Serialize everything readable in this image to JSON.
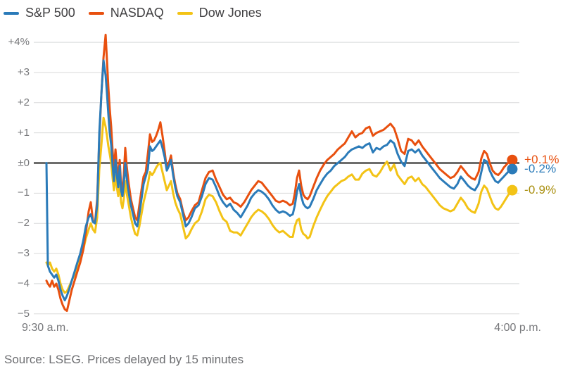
{
  "source_note": "Source: LSEG. Prices delayed by 15 minutes",
  "chart_data": {
    "type": "line",
    "title": "",
    "x_axis": {
      "start_label": "9:30 a.m.",
      "end_label": "4:00 p.m.",
      "unit": "minutes after open",
      "range_minutes": [
        0,
        390
      ]
    },
    "y_axis": {
      "unit": "percent change",
      "range": [
        -5,
        4.3
      ],
      "tick_values": [
        4,
        3,
        2,
        1,
        0,
        -1,
        -2,
        -3,
        -4,
        -5
      ],
      "tick_labels": [
        "+4%",
        "+3",
        "+2",
        "+1",
        "±0",
        "−1",
        "−2",
        "−3",
        "−4",
        "−5"
      ]
    },
    "grid": true,
    "zero_line": true,
    "zero_line_color": "#1d1d1b",
    "grid_color": "#d8d9da",
    "legend_position": "top-left",
    "x": [
      10.2,
      11.3,
      13.0,
      14.7,
      16.4,
      18.1,
      19.8,
      21.5,
      23.2,
      24.9,
      26.6,
      28.3,
      30.5,
      32.8,
      35.0,
      37.3,
      39.6,
      41.8,
      44.1,
      45.8,
      47.5,
      49.2,
      50.9,
      52.6,
      54.3,
      56.0,
      57.7,
      58.8,
      59.9,
      61.0,
      62.2,
      63.3,
      64.4,
      65.6,
      66.7,
      67.8,
      69.0,
      70.1,
      71.2,
      72.3,
      73.5,
      74.6,
      76.3,
      78.0,
      79.7,
      81.4,
      83.1,
      84.8,
      86.5,
      88.2,
      89.9,
      91.6,
      93.3,
      95.0,
      96.6,
      98.3,
      100.0,
      101.7,
      103.4,
      105.1,
      106.8,
      108.5,
      110.2,
      111.9,
      113.6,
      115.3,
      117.6,
      119.8,
      122.1,
      124.3,
      126.6,
      129.4,
      132.3,
      135.1,
      137.9,
      140.7,
      143.6,
      146.4,
      149.2,
      152.0,
      154.9,
      157.7,
      160.5,
      163.3,
      166.2,
      169.0,
      171.8,
      174.6,
      177.5,
      180.3,
      183.1,
      185.9,
      188.8,
      191.6,
      194.4,
      197.2,
      200.1,
      202.9,
      205.7,
      208.0,
      209.7,
      211.4,
      213.1,
      214.8,
      216.5,
      218.2,
      219.9,
      221.6,
      224.4,
      227.2,
      230.0,
      232.9,
      235.7,
      238.5,
      241.3,
      244.2,
      247.0,
      249.8,
      252.6,
      255.5,
      258.3,
      261.1,
      263.9,
      266.8,
      269.6,
      272.4,
      275.2,
      278.1,
      280.9,
      283.7,
      286.5,
      289.4,
      292.2,
      295.0,
      297.8,
      300.7,
      303.5,
      306.3,
      309.1,
      312.0,
      314.8,
      317.6,
      320.4,
      323.3,
      326.1,
      328.9,
      331.7,
      334.6,
      337.4,
      340.2,
      343.0,
      345.9,
      348.7,
      351.5,
      354.3,
      357.2,
      359.4,
      361.7,
      363.9,
      366.2,
      368.5,
      370.7,
      373.0,
      375.2,
      377.5,
      379.7,
      382.0,
      384.3
    ],
    "series": [
      {
        "name": "S&P 500",
        "color": "#2b7bb9",
        "end_label": "-0.2%",
        "end_value": -0.2,
        "values": [
          0,
          -3.4,
          -3.6,
          -3.7,
          -3.8,
          -3.7,
          -3.9,
          -4.2,
          -4.4,
          -4.55,
          -4.4,
          -4.2,
          -3.9,
          -3.6,
          -3.3,
          -3.0,
          -2.6,
          -2.1,
          -1.8,
          -1.7,
          -1.95,
          -2.0,
          -1.4,
          1.0,
          2.3,
          3.4,
          2.9,
          2.3,
          1.6,
          1.0,
          0.6,
          -0.1,
          -0.6,
          0.1,
          -0.4,
          -0.8,
          -0.1,
          -0.9,
          -1.1,
          -0.7,
          0.0,
          -0.5,
          -1.0,
          -1.4,
          -1.7,
          -2.0,
          -2.1,
          -1.7,
          -1.2,
          -0.7,
          -0.45,
          -0.2,
          0.55,
          0.4,
          0.45,
          0.55,
          0.65,
          0.75,
          0.5,
          0.2,
          -0.25,
          -0.1,
          0.1,
          -0.4,
          -0.8,
          -1.1,
          -1.3,
          -1.7,
          -2.1,
          -2.0,
          -1.8,
          -1.5,
          -1.4,
          -1.1,
          -0.7,
          -0.5,
          -0.55,
          -0.8,
          -1.1,
          -1.3,
          -1.45,
          -1.35,
          -1.55,
          -1.65,
          -1.8,
          -1.6,
          -1.4,
          -1.15,
          -1.0,
          -0.9,
          -0.95,
          -1.05,
          -1.2,
          -1.4,
          -1.55,
          -1.65,
          -1.6,
          -1.65,
          -1.75,
          -1.7,
          -1.4,
          -0.95,
          -0.7,
          -1.1,
          -1.35,
          -1.45,
          -1.5,
          -1.45,
          -1.2,
          -0.9,
          -0.7,
          -0.5,
          -0.35,
          -0.25,
          -0.1,
          0.0,
          0.1,
          0.2,
          0.35,
          0.45,
          0.5,
          0.55,
          0.5,
          0.6,
          0.65,
          0.35,
          0.5,
          0.45,
          0.55,
          0.6,
          0.75,
          0.65,
          0.3,
          0.05,
          -0.1,
          0.4,
          0.45,
          0.35,
          0.45,
          0.25,
          0.1,
          -0.05,
          -0.2,
          -0.35,
          -0.5,
          -0.6,
          -0.7,
          -0.8,
          -0.85,
          -0.7,
          -0.45,
          -0.6,
          -0.75,
          -0.85,
          -0.9,
          -0.7,
          -0.3,
          0.1,
          0.05,
          -0.25,
          -0.45,
          -0.6,
          -0.65,
          -0.55,
          -0.45,
          -0.35,
          -0.25,
          -0.2
        ]
      },
      {
        "name": "NASDAQ",
        "color": "#e8500f",
        "end_label": "+0.1%",
        "end_value": 0.1,
        "values": [
          -3.9,
          -4.0,
          -4.1,
          -3.9,
          -4.1,
          -4.0,
          -4.2,
          -4.5,
          -4.7,
          -4.85,
          -4.9,
          -4.6,
          -4.2,
          -3.9,
          -3.6,
          -3.3,
          -2.9,
          -2.3,
          -1.6,
          -1.3,
          -1.9,
          -2.0,
          -1.2,
          0.8,
          2.3,
          3.5,
          4.25,
          3.4,
          2.5,
          1.8,
          1.2,
          0.4,
          -0.2,
          0.45,
          -0.1,
          -0.5,
          0.1,
          -0.7,
          -0.9,
          -0.4,
          0.5,
          -0.1,
          -0.7,
          -1.2,
          -1.5,
          -1.8,
          -1.9,
          -1.4,
          -0.9,
          -0.45,
          -0.3,
          0.3,
          0.95,
          0.7,
          0.75,
          0.9,
          1.1,
          1.35,
          0.9,
          0.4,
          -0.2,
          0.0,
          0.25,
          -0.3,
          -0.7,
          -1.0,
          -1.2,
          -1.6,
          -1.9,
          -1.8,
          -1.6,
          -1.4,
          -1.3,
          -0.9,
          -0.5,
          -0.3,
          -0.25,
          -0.55,
          -0.8,
          -1.05,
          -1.2,
          -1.15,
          -1.3,
          -1.35,
          -1.45,
          -1.3,
          -1.1,
          -0.9,
          -0.75,
          -0.6,
          -0.65,
          -0.8,
          -0.95,
          -1.1,
          -1.25,
          -1.3,
          -1.25,
          -1.3,
          -1.4,
          -1.35,
          -1.0,
          -0.5,
          -0.25,
          -0.75,
          -1.05,
          -1.15,
          -1.2,
          -1.1,
          -0.8,
          -0.5,
          -0.25,
          -0.05,
          0.1,
          0.2,
          0.3,
          0.45,
          0.55,
          0.65,
          0.85,
          1.05,
          0.85,
          0.95,
          1.0,
          1.15,
          1.2,
          0.9,
          1.0,
          1.05,
          1.1,
          1.2,
          1.3,
          1.15,
          0.8,
          0.4,
          0.3,
          0.8,
          0.75,
          0.6,
          0.75,
          0.55,
          0.4,
          0.25,
          0.1,
          -0.05,
          -0.2,
          -0.3,
          -0.4,
          -0.5,
          -0.45,
          -0.3,
          -0.1,
          -0.25,
          -0.4,
          -0.5,
          -0.55,
          -0.3,
          0.15,
          0.4,
          0.3,
          0.0,
          -0.25,
          -0.35,
          -0.4,
          -0.3,
          -0.15,
          -0.05,
          0.05,
          0.1
        ]
      },
      {
        "name": "Dow Jones",
        "color": "#f3c316",
        "end_label": "-0.9%",
        "end_value": -0.9,
        "label_color": "#a98f0f",
        "values": [
          -3.3,
          -3.4,
          -3.3,
          -3.5,
          -3.6,
          -3.5,
          -3.7,
          -4.0,
          -4.2,
          -4.3,
          -4.25,
          -4.1,
          -3.9,
          -3.7,
          -3.5,
          -3.2,
          -2.9,
          -2.5,
          -2.2,
          -2.0,
          -2.2,
          -2.3,
          -1.8,
          -0.2,
          0.6,
          1.5,
          1.2,
          0.9,
          0.55,
          0.3,
          0.0,
          -0.5,
          -0.9,
          -0.4,
          -0.8,
          -1.1,
          -0.6,
          -1.3,
          -1.5,
          -1.2,
          -0.6,
          -1.0,
          -1.4,
          -1.8,
          -2.1,
          -2.35,
          -2.4,
          -2.1,
          -1.7,
          -1.3,
          -1.0,
          -0.7,
          -0.3,
          -0.4,
          -0.3,
          -0.15,
          -0.05,
          0.0,
          -0.3,
          -0.6,
          -0.9,
          -0.75,
          -0.6,
          -1.0,
          -1.3,
          -1.5,
          -1.7,
          -2.1,
          -2.5,
          -2.4,
          -2.2,
          -2.0,
          -1.9,
          -1.6,
          -1.2,
          -1.05,
          -1.1,
          -1.3,
          -1.6,
          -1.85,
          -1.95,
          -2.25,
          -2.3,
          -2.3,
          -2.4,
          -2.2,
          -2.0,
          -1.8,
          -1.65,
          -1.55,
          -1.6,
          -1.7,
          -1.85,
          -2.05,
          -2.2,
          -2.3,
          -2.25,
          -2.35,
          -2.45,
          -2.45,
          -2.1,
          -1.9,
          -1.85,
          -2.2,
          -2.35,
          -2.4,
          -2.5,
          -2.45,
          -2.1,
          -1.8,
          -1.55,
          -1.3,
          -1.1,
          -0.95,
          -0.8,
          -0.7,
          -0.6,
          -0.55,
          -0.45,
          -0.38,
          -0.55,
          -0.55,
          -0.35,
          -0.25,
          -0.2,
          -0.4,
          -0.45,
          -0.3,
          -0.1,
          0.05,
          -0.25,
          -0.05,
          -0.4,
          -0.55,
          -0.7,
          -0.5,
          -0.45,
          -0.6,
          -0.5,
          -0.7,
          -0.8,
          -0.95,
          -1.1,
          -1.25,
          -1.4,
          -1.5,
          -1.55,
          -1.6,
          -1.55,
          -1.35,
          -1.15,
          -1.3,
          -1.5,
          -1.6,
          -1.65,
          -1.35,
          -0.95,
          -0.75,
          -0.85,
          -1.1,
          -1.35,
          -1.5,
          -1.55,
          -1.45,
          -1.3,
          -1.15,
          -1.0,
          -0.9
        ]
      }
    ]
  }
}
